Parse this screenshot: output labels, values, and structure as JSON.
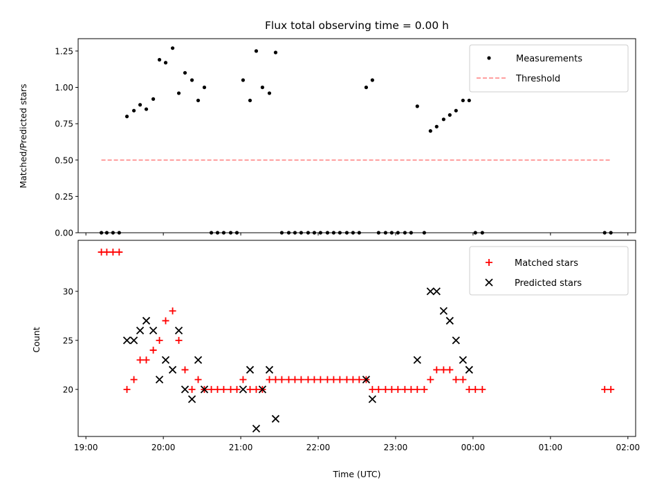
{
  "chart_data": [
    {
      "type": "scatter",
      "title": "Flux total observing time = 0.00 h",
      "xlabel": "",
      "ylabel": "Matched/Predicted stars",
      "ylim": [
        0,
        1.335
      ],
      "yticks": [
        0,
        0.25,
        0.5,
        0.75,
        1.0,
        1.25
      ],
      "ytick_labels": [
        "0.00",
        "0.25",
        "0.50",
        "0.75",
        "1.00",
        "1.25"
      ],
      "legend": {
        "placement": "top-right",
        "entries": [
          {
            "label": "Measurements",
            "color": "#000000",
            "marker": "dot"
          },
          {
            "label": "Threshold",
            "color": "#ff7f7f",
            "marker": "dashed-line"
          }
        ]
      },
      "threshold": {
        "value": 0.5,
        "x_start": 19.2,
        "x_end": 25.78,
        "color": "#ff7f7f"
      },
      "series": [
        {
          "name": "Measurements",
          "color": "#000000",
          "points": [
            [
              19.2,
              0
            ],
            [
              19.27,
              0
            ],
            [
              19.35,
              0
            ],
            [
              19.43,
              0
            ],
            [
              19.53,
              0.8
            ],
            [
              19.62,
              0.84
            ],
            [
              19.7,
              0.88
            ],
            [
              19.78,
              0.85
            ],
            [
              19.87,
              0.92
            ],
            [
              19.95,
              1.19
            ],
            [
              20.03,
              1.17
            ],
            [
              20.12,
              1.27
            ],
            [
              20.2,
              0.96
            ],
            [
              20.28,
              1.1
            ],
            [
              20.37,
              1.05
            ],
            [
              20.45,
              0.91
            ],
            [
              20.53,
              1.0
            ],
            [
              20.62,
              0
            ],
            [
              20.7,
              0
            ],
            [
              20.78,
              0
            ],
            [
              20.87,
              0
            ],
            [
              20.95,
              0
            ],
            [
              21.03,
              1.05
            ],
            [
              21.12,
              0.91
            ],
            [
              21.2,
              1.25
            ],
            [
              21.28,
              1.0
            ],
            [
              21.37,
              0.96
            ],
            [
              21.45,
              1.24
            ],
            [
              21.53,
              0
            ],
            [
              21.62,
              0
            ],
            [
              21.7,
              0
            ],
            [
              21.78,
              0
            ],
            [
              21.87,
              0
            ],
            [
              21.95,
              0
            ],
            [
              22.03,
              0
            ],
            [
              22.12,
              0
            ],
            [
              22.2,
              0
            ],
            [
              22.28,
              0
            ],
            [
              22.37,
              0
            ],
            [
              22.45,
              0
            ],
            [
              22.53,
              0
            ],
            [
              22.62,
              1.0
            ],
            [
              22.7,
              1.05
            ],
            [
              22.78,
              0
            ],
            [
              22.87,
              0
            ],
            [
              22.95,
              0
            ],
            [
              23.03,
              0
            ],
            [
              23.12,
              0
            ],
            [
              23.2,
              0
            ],
            [
              23.28,
              0.87
            ],
            [
              23.37,
              0
            ],
            [
              23.45,
              0.7
            ],
            [
              23.53,
              0.73
            ],
            [
              23.62,
              0.78
            ],
            [
              23.7,
              0.81
            ],
            [
              23.78,
              0.84
            ],
            [
              23.87,
              0.91
            ],
            [
              23.95,
              0.91
            ],
            [
              24.03,
              0
            ],
            [
              24.12,
              0
            ],
            [
              25.7,
              0
            ],
            [
              25.78,
              0
            ]
          ]
        }
      ]
    },
    {
      "type": "scatter",
      "title": "",
      "xlabel": "Time (UTC)",
      "ylabel": "Count",
      "ylim": [
        15.2,
        35.2
      ],
      "yticks": [
        20,
        25,
        30
      ],
      "ytick_labels": [
        "20",
        "25",
        "30"
      ],
      "xlim": [
        18.9,
        26.1
      ],
      "xticks": [
        19,
        20,
        21,
        22,
        23,
        24,
        25,
        26
      ],
      "xtick_labels": [
        "19:00",
        "20:00",
        "21:00",
        "22:00",
        "23:00",
        "00:00",
        "01:00",
        "02:00"
      ],
      "legend": {
        "placement": "top-right",
        "entries": [
          {
            "label": "Matched stars",
            "color": "#ff0000",
            "marker": "plus"
          },
          {
            "label": "Predicted stars",
            "color": "#000000",
            "marker": "x"
          }
        ]
      },
      "series": [
        {
          "name": "Matched stars",
          "color": "#ff0000",
          "points": [
            [
              19.2,
              34
            ],
            [
              19.27,
              34
            ],
            [
              19.35,
              34
            ],
            [
              19.43,
              34
            ],
            [
              19.53,
              20
            ],
            [
              19.62,
              21
            ],
            [
              19.7,
              23
            ],
            [
              19.78,
              23
            ],
            [
              19.87,
              24
            ],
            [
              19.95,
              25
            ],
            [
              20.03,
              27
            ],
            [
              20.12,
              28
            ],
            [
              20.2,
              25
            ],
            [
              20.28,
              22
            ],
            [
              20.37,
              20
            ],
            [
              20.45,
              21
            ],
            [
              20.53,
              20
            ],
            [
              20.62,
              20
            ],
            [
              20.7,
              20
            ],
            [
              20.78,
              20
            ],
            [
              20.87,
              20
            ],
            [
              20.95,
              20
            ],
            [
              21.03,
              21
            ],
            [
              21.12,
              20
            ],
            [
              21.2,
              20
            ],
            [
              21.28,
              20
            ],
            [
              21.37,
              21
            ],
            [
              21.45,
              21
            ],
            [
              21.53,
              21
            ],
            [
              21.62,
              21
            ],
            [
              21.7,
              21
            ],
            [
              21.78,
              21
            ],
            [
              21.87,
              21
            ],
            [
              21.95,
              21
            ],
            [
              22.03,
              21
            ],
            [
              22.12,
              21
            ],
            [
              22.2,
              21
            ],
            [
              22.28,
              21
            ],
            [
              22.37,
              21
            ],
            [
              22.45,
              21
            ],
            [
              22.53,
              21
            ],
            [
              22.62,
              21
            ],
            [
              22.7,
              20
            ],
            [
              22.78,
              20
            ],
            [
              22.87,
              20
            ],
            [
              22.95,
              20
            ],
            [
              23.03,
              20
            ],
            [
              23.12,
              20
            ],
            [
              23.2,
              20
            ],
            [
              23.28,
              20
            ],
            [
              23.37,
              20
            ],
            [
              23.45,
              21
            ],
            [
              23.53,
              22
            ],
            [
              23.62,
              22
            ],
            [
              23.7,
              22
            ],
            [
              23.78,
              21
            ],
            [
              23.87,
              21
            ],
            [
              23.95,
              20
            ],
            [
              24.03,
              20
            ],
            [
              24.12,
              20
            ],
            [
              25.7,
              20
            ],
            [
              25.78,
              20
            ]
          ]
        },
        {
          "name": "Predicted stars",
          "color": "#000000",
          "points": [
            [
              19.53,
              25
            ],
            [
              19.62,
              25
            ],
            [
              19.7,
              26
            ],
            [
              19.78,
              27
            ],
            [
              19.87,
              26
            ],
            [
              19.95,
              21
            ],
            [
              20.03,
              23
            ],
            [
              20.12,
              22
            ],
            [
              20.2,
              26
            ],
            [
              20.28,
              20
            ],
            [
              20.37,
              19
            ],
            [
              20.45,
              23
            ],
            [
              20.53,
              20
            ],
            [
              21.03,
              20
            ],
            [
              21.12,
              22
            ],
            [
              21.2,
              16
            ],
            [
              21.28,
              20
            ],
            [
              21.37,
              22
            ],
            [
              21.45,
              17
            ],
            [
              22.62,
              21
            ],
            [
              22.7,
              19
            ],
            [
              23.28,
              23
            ],
            [
              23.45,
              30
            ],
            [
              23.53,
              30
            ],
            [
              23.62,
              28
            ],
            [
              23.7,
              27
            ],
            [
              23.78,
              25
            ],
            [
              23.87,
              23
            ],
            [
              23.95,
              22
            ]
          ]
        }
      ]
    }
  ]
}
